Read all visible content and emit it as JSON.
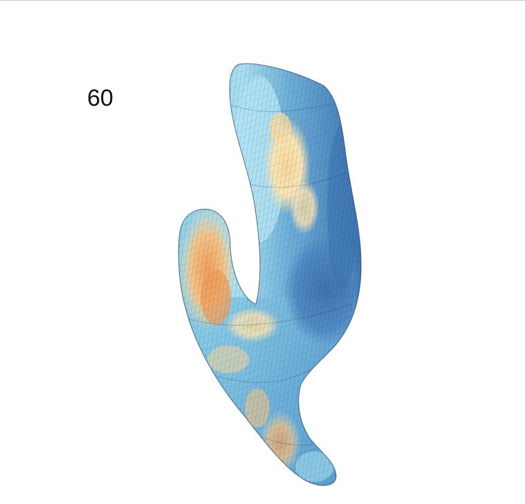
{
  "label": "60",
  "colors": {
    "background": "#ffffff",
    "deep_blue": "#3f77b4",
    "mid_blue": "#69a9d5",
    "light_blue": "#a8dcef",
    "cream": "#fbe3a8",
    "orange": "#f2a863",
    "mesh_line": "#1b2a38"
  }
}
